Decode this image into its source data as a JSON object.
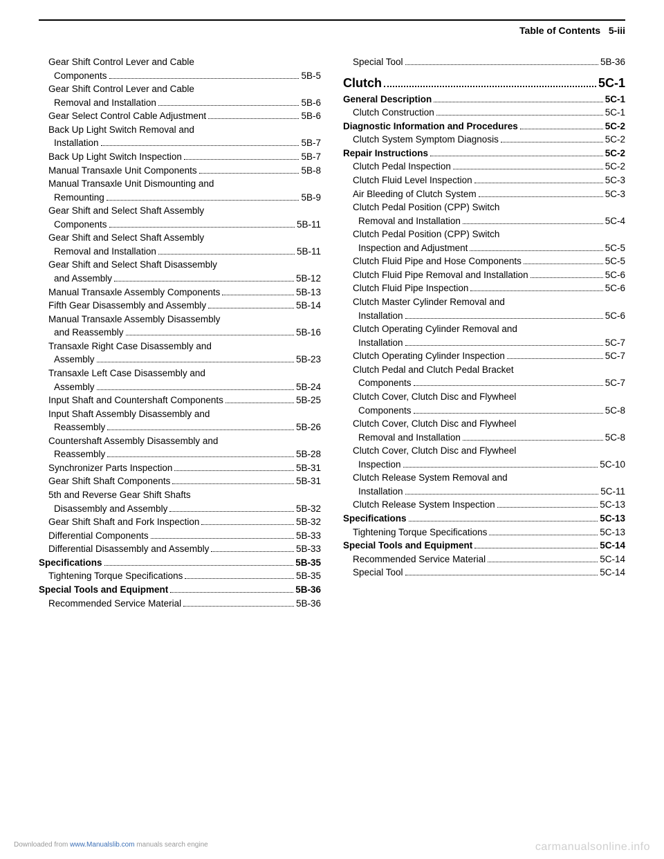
{
  "header": {
    "title": "Table of Contents",
    "page_ref": "5-iii"
  },
  "left": [
    {
      "label": "Gear Shift Control Lever and Cable Components",
      "page": "5B-5",
      "indent": 1,
      "wrap": true
    },
    {
      "label": "Gear Shift Control Lever and Cable Removal and Installation",
      "page": "5B-6",
      "indent": 1,
      "wrap": true
    },
    {
      "label": "Gear Select Control Cable Adjustment",
      "page": "5B-6",
      "indent": 1
    },
    {
      "label": "Back Up Light Switch Removal and Installation",
      "page": "5B-7",
      "indent": 1,
      "wrap": true
    },
    {
      "label": "Back Up Light Switch Inspection",
      "page": "5B-7",
      "indent": 1
    },
    {
      "label": "Manual Transaxle Unit Components",
      "page": "5B-8",
      "indent": 1
    },
    {
      "label": "Manual Transaxle Unit Dismounting and Remounting",
      "page": "5B-9",
      "indent": 1,
      "wrap": true
    },
    {
      "label": "Gear Shift and Select Shaft Assembly Components",
      "page": "5B-11",
      "indent": 1,
      "wrap": true
    },
    {
      "label": "Gear Shift and Select Shaft Assembly Removal and Installation",
      "page": "5B-11",
      "indent": 1,
      "wrap": true
    },
    {
      "label": "Gear Shift and Select Shaft Disassembly and Assembly",
      "page": "5B-12",
      "indent": 1,
      "wrap": true
    },
    {
      "label": "Manual Transaxle Assembly Components",
      "page": "5B-13",
      "indent": 1
    },
    {
      "label": "Fifth Gear Disassembly and Assembly",
      "page": "5B-14",
      "indent": 1
    },
    {
      "label": "Manual Transaxle Assembly Disassembly and Reassembly",
      "page": "5B-16",
      "indent": 1,
      "wrap": true
    },
    {
      "label": "Transaxle Right Case Disassembly and Assembly",
      "page": "5B-23",
      "indent": 1,
      "wrap": true
    },
    {
      "label": "Transaxle Left Case Disassembly and Assembly",
      "page": "5B-24",
      "indent": 1,
      "wrap": true
    },
    {
      "label": "Input Shaft and Countershaft Components",
      "page": "5B-25",
      "indent": 1
    },
    {
      "label": "Input Shaft Assembly Disassembly and Reassembly",
      "page": "5B-26",
      "indent": 1,
      "wrap": true
    },
    {
      "label": "Countershaft Assembly Disassembly and Reassembly",
      "page": "5B-28",
      "indent": 1,
      "wrap": true
    },
    {
      "label": "Synchronizer Parts Inspection",
      "page": "5B-31",
      "indent": 1
    },
    {
      "label": "Gear Shift Shaft Components",
      "page": "5B-31",
      "indent": 1
    },
    {
      "label": "5th and Reverse Gear Shift Shafts Disassembly and Assembly",
      "page": "5B-32",
      "indent": 1,
      "wrap": true
    },
    {
      "label": "Gear Shift Shaft and Fork Inspection",
      "page": "5B-32",
      "indent": 1
    },
    {
      "label": "Differential Components",
      "page": "5B-33",
      "indent": 1
    },
    {
      "label": "Differential Disassembly and Assembly",
      "page": "5B-33",
      "indent": 1
    },
    {
      "label": "Specifications",
      "page": "5B-35",
      "indent": 0,
      "bold": true
    },
    {
      "label": "Tightening Torque Specifications",
      "page": "5B-35",
      "indent": 1
    },
    {
      "label": "Special Tools and Equipment",
      "page": "5B-36",
      "indent": 0,
      "bold": true
    },
    {
      "label": "Recommended Service Material",
      "page": "5B-36",
      "indent": 1
    }
  ],
  "right_top": [
    {
      "label": "Special Tool",
      "page": "5B-36",
      "indent": 1
    }
  ],
  "section": {
    "label": "Clutch",
    "page": "5C-1"
  },
  "right": [
    {
      "label": "General Description",
      "page": "5C-1",
      "indent": 0,
      "bold": true
    },
    {
      "label": "Clutch Construction",
      "page": "5C-1",
      "indent": 1
    },
    {
      "label": "Diagnostic Information and Procedures",
      "page": "5C-2",
      "indent": 0,
      "bold": true
    },
    {
      "label": "Clutch System Symptom Diagnosis",
      "page": "5C-2",
      "indent": 1
    },
    {
      "label": "Repair Instructions",
      "page": "5C-2",
      "indent": 0,
      "bold": true
    },
    {
      "label": "Clutch Pedal Inspection",
      "page": "5C-2",
      "indent": 1
    },
    {
      "label": "Clutch Fluid Level Inspection",
      "page": "5C-3",
      "indent": 1
    },
    {
      "label": "Air Bleeding of Clutch System",
      "page": "5C-3",
      "indent": 1
    },
    {
      "label": "Clutch Pedal Position (CPP) Switch Removal and Installation",
      "page": "5C-4",
      "indent": 1,
      "wrap": true
    },
    {
      "label": "Clutch Pedal Position (CPP) Switch Inspection and Adjustment",
      "page": "5C-5",
      "indent": 1,
      "wrap": true
    },
    {
      "label": "Clutch Fluid Pipe and Hose Components",
      "page": "5C-5",
      "indent": 1
    },
    {
      "label": "Clutch Fluid Pipe Removal and Installation",
      "page": "5C-6",
      "indent": 1
    },
    {
      "label": "Clutch Fluid Pipe Inspection",
      "page": "5C-6",
      "indent": 1
    },
    {
      "label": "Clutch Master Cylinder Removal and Installation",
      "page": "5C-6",
      "indent": 1,
      "wrap": true
    },
    {
      "label": "Clutch Operating Cylinder Removal and Installation",
      "page": "5C-7",
      "indent": 1,
      "wrap": true
    },
    {
      "label": "Clutch Operating Cylinder Inspection",
      "page": "5C-7",
      "indent": 1
    },
    {
      "label": "Clutch Pedal and Clutch Pedal Bracket Components",
      "page": "5C-7",
      "indent": 1,
      "wrap": true
    },
    {
      "label": "Clutch Cover, Clutch Disc and Flywheel Components",
      "page": "5C-8",
      "indent": 1,
      "wrap": true
    },
    {
      "label": "Clutch Cover, Clutch Disc and Flywheel Removal and Installation",
      "page": "5C-8",
      "indent": 1,
      "wrap": true
    },
    {
      "label": "Clutch Cover, Clutch Disc and Flywheel Inspection",
      "page": "5C-10",
      "indent": 1,
      "wrap": true
    },
    {
      "label": "Clutch Release System Removal and Installation",
      "page": "5C-11",
      "indent": 1,
      "wrap": true
    },
    {
      "label": "Clutch Release System Inspection",
      "page": "5C-13",
      "indent": 1
    },
    {
      "label": "Specifications",
      "page": "5C-13",
      "indent": 0,
      "bold": true
    },
    {
      "label": "Tightening Torque Specifications",
      "page": "5C-13",
      "indent": 1
    },
    {
      "label": "Special Tools and Equipment",
      "page": "5C-14",
      "indent": 0,
      "bold": true
    },
    {
      "label": "Recommended Service Material",
      "page": "5C-14",
      "indent": 1
    },
    {
      "label": "Special Tool",
      "page": "5C-14",
      "indent": 1
    }
  ],
  "footer": {
    "prefix": "Downloaded from ",
    "link_text": "www.Manualslib.com",
    "suffix": " manuals search engine",
    "watermark": "carmanualsonline.info"
  }
}
